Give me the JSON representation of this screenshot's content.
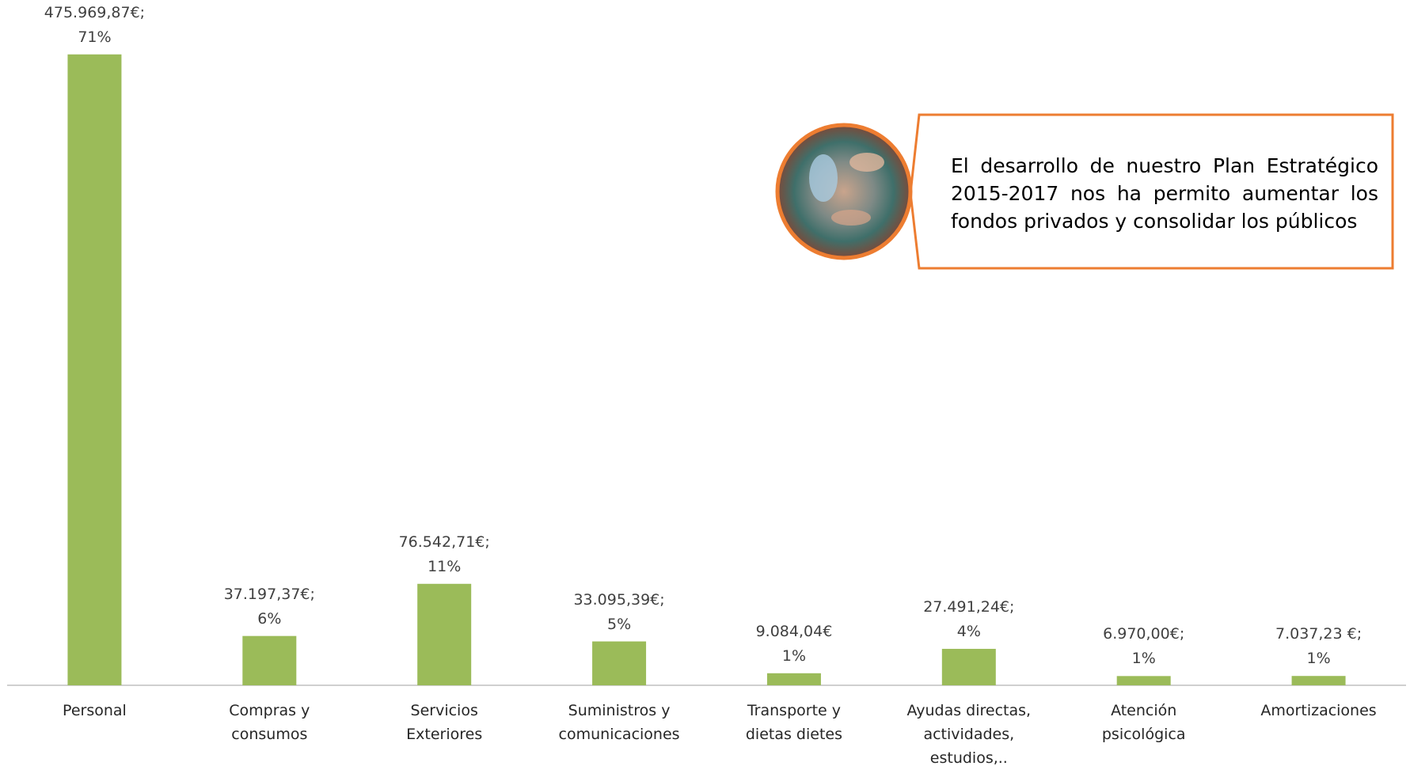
{
  "chart_data": {
    "type": "bar",
    "categories": [
      "Personal",
      "Compras y consumos",
      "Servicios Exteriores",
      "Suministros y comunicaciones",
      "Transporte y dietas dietes",
      "Ayudas directas, actividades, estudios,..",
      "Atención psicológica",
      "Amortizaciones"
    ],
    "values": [
      475969.87,
      37197.37,
      76542.71,
      33095.39,
      9084.04,
      27491.24,
      6970.0,
      7037.23
    ],
    "value_labels": [
      "475.969,87€;\n71%",
      "37.197,37€;\n6%",
      "76.542,71€;\n11%",
      "33.095,39€;\n5%",
      "9.084,04€\n1%",
      "27.491,24€;\n4%",
      "6.970,00€;\n1%",
      "7.037,23 €;\n1%"
    ],
    "color": "#9bbb59",
    "ylim": [
      0,
      517000
    ],
    "annotation": "El desarrollo de nuestro Plan Estratégico 2015-2017 nos ha permito aumentar los fondos privados y consolidar los públicos"
  }
}
